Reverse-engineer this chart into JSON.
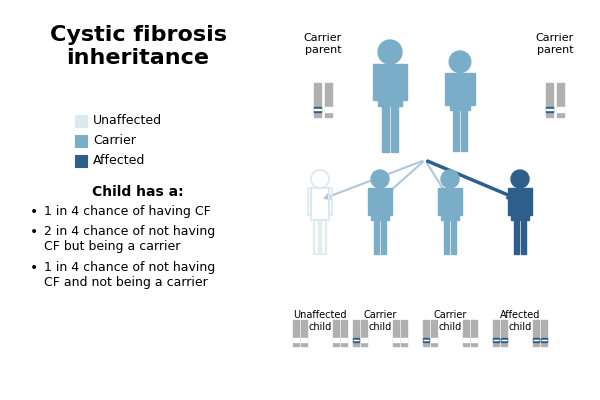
{
  "title": "Cystic fibrosis\ninheritance",
  "title_fontsize": 16,
  "bg_color": "#ffffff",
  "legend_items": [
    {
      "label": "Unaffected",
      "color": "#dce8f0"
    },
    {
      "label": "Carrier",
      "color": "#7aaec8"
    },
    {
      "label": "Affected",
      "color": "#2e5f8a"
    }
  ],
  "child_header": "Child has a:",
  "bullet_points": [
    "1 in 4 chance of having CF",
    "2 in 4 chance of not having\nCF but being a carrier",
    "1 in 4 chance of not having\nCF and not being a carrier"
  ],
  "carrier_parent_label": "Carrier\nparent",
  "parent_color": "#7aaec8",
  "parent_silhouette_color": "#7aaec8",
  "child_colors": [
    "#dce8f0",
    "#7aaec8",
    "#7aaec8",
    "#2e5f8a"
  ],
  "child_labels": [
    "Unaffected\nchild",
    "Carrier\nchild",
    "Carrier\nchild",
    "Affected\nchild"
  ],
  "chr_normal_color": "#b0b0b0",
  "chr_cf_color": "#2e5f8a",
  "chr_unaffected_color": "#dce8f0",
  "arrow_light_color": "#b0c8dc",
  "arrow_dark_color": "#2e5f8a"
}
